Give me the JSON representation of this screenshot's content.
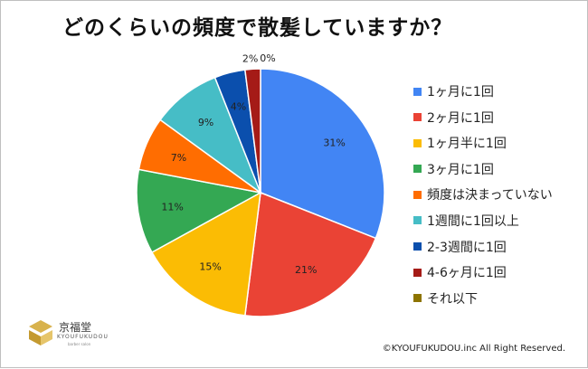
{
  "title": "どのくらいの頻度で散髪していますか？",
  "chart_data": {
    "type": "pie",
    "title": "どのくらいの頻度で散髪していますか？",
    "categories": [
      "1ヶ月に1回",
      "2ヶ月に1回",
      "1ヶ月半に1回",
      "3ヶ月に1回",
      "頻度は決まっていない",
      "1週間に1回以上",
      "2-3週間に1回",
      "4-6ヶ月に1回",
      "それ以下"
    ],
    "values": [
      31,
      21,
      15,
      11,
      7,
      9,
      4,
      2,
      0
    ],
    "labels": [
      "31%",
      "21%",
      "15%",
      "11%",
      "7%",
      "9%",
      "4%",
      "2%",
      "0%"
    ],
    "colors": [
      "#4285f4",
      "#ea4335",
      "#fbbc04",
      "#34a853",
      "#ff6d01",
      "#46bdc6",
      "#0b4fad",
      "#a51b17",
      "#8d7400"
    ],
    "legend": "right"
  },
  "logo": {
    "name": "京福堂",
    "sub": "KYOUFUKUDOU",
    "tag": "barber salon"
  },
  "copyright": "©KYOUFUKUDOU.inc All Right Reserved."
}
